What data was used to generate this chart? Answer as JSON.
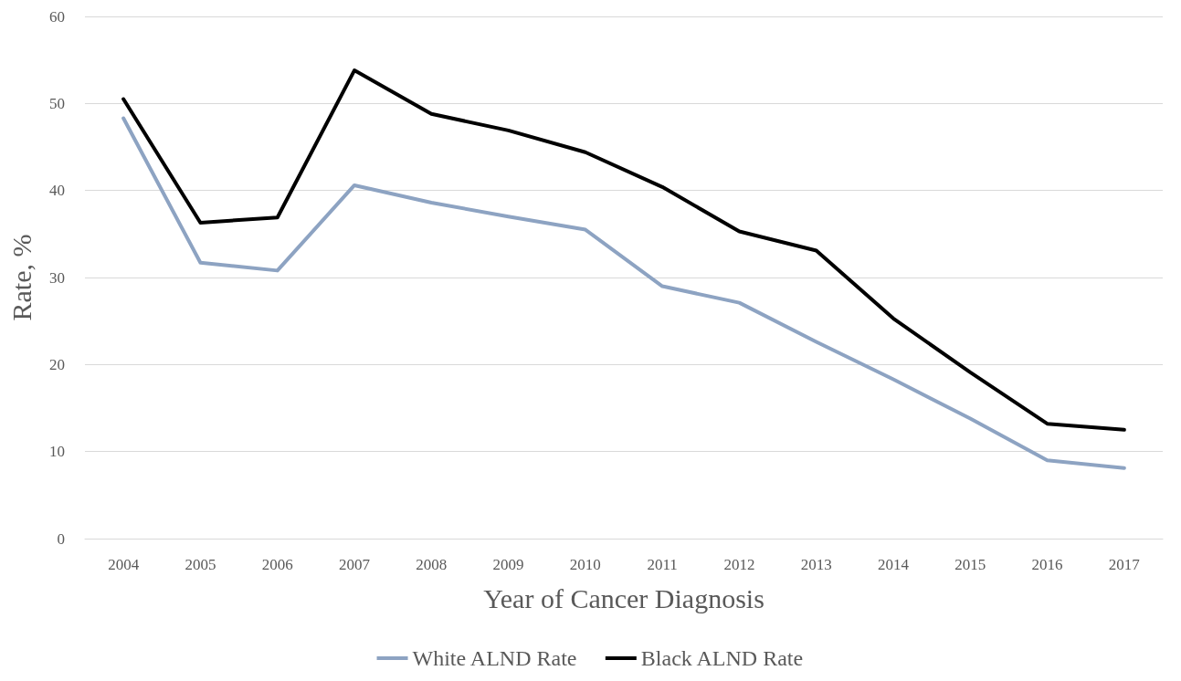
{
  "chart_data": {
    "type": "line",
    "xlabel": "Year of Cancer Diagnosis",
    "ylabel": "Rate, %",
    "categories": [
      "2004",
      "2005",
      "2006",
      "2007",
      "2008",
      "2009",
      "2010",
      "2011",
      "2012",
      "2013",
      "2014",
      "2015",
      "2016",
      "2017"
    ],
    "series": [
      {
        "name": "White ALND Rate",
        "color": "#8da3c2",
        "values": [
          48.3,
          31.7,
          30.8,
          40.6,
          38.6,
          37.0,
          35.5,
          29.0,
          27.1,
          22.6,
          18.3,
          13.8,
          9.0,
          8.1
        ]
      },
      {
        "name": "Black ALND Rate",
        "color": "#000000",
        "values": [
          50.5,
          36.3,
          36.9,
          53.8,
          48.8,
          46.9,
          44.4,
          40.4,
          35.3,
          33.1,
          25.3,
          19.1,
          13.2,
          12.5
        ]
      }
    ],
    "ylim": [
      0,
      60
    ],
    "yticks": [
      0,
      10,
      20,
      30,
      40,
      50,
      60
    ],
    "grid": "y",
    "legend": "bottom",
    "marker": "none",
    "line_style": "solid"
  }
}
